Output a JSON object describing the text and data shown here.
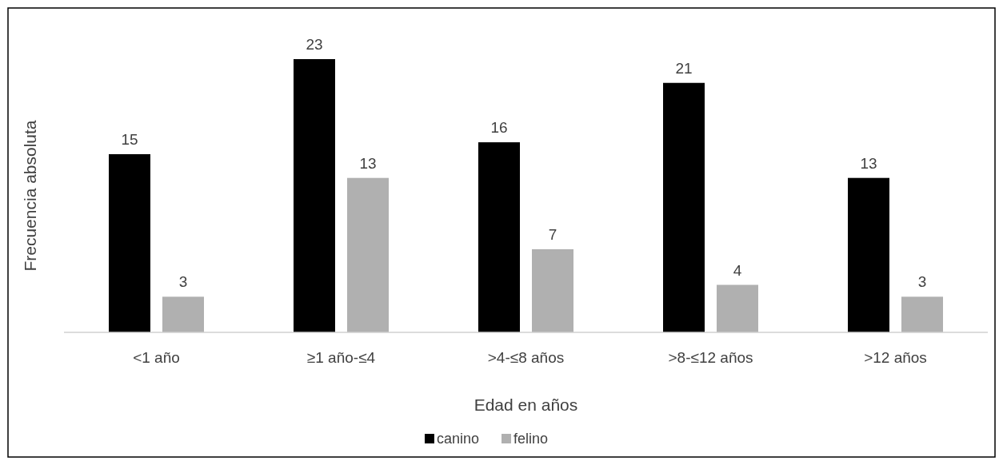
{
  "chart_data": {
    "type": "bar",
    "xlabel": "Edad en años",
    "ylabel": "Frecuencia absoluta",
    "categories": [
      "<1 año",
      "≥1 año-≤4",
      ">4-≤8 años",
      ">8-≤12 años",
      ">12 años"
    ],
    "series": [
      {
        "name": "canino",
        "color": "#000000",
        "values": [
          15,
          23,
          16,
          21,
          13
        ]
      },
      {
        "name": "felino",
        "color": "#b0b0b0",
        "values": [
          3,
          13,
          7,
          4,
          3
        ]
      }
    ],
    "data_labels": true,
    "legend": "bottom"
  }
}
